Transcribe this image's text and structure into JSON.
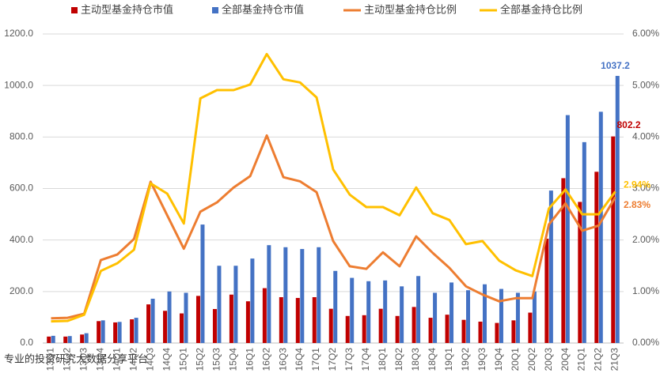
{
  "chart_data": {
    "type": "combo",
    "categories": [
      "13Q1",
      "13Q2",
      "13Q3",
      "13Q4",
      "14Q1",
      "14Q2",
      "14Q3",
      "14Q4",
      "15Q1",
      "15Q2",
      "15Q3",
      "15Q4",
      "16Q1",
      "16Q2",
      "16Q3",
      "16Q4",
      "17Q1",
      "17Q2",
      "17Q3",
      "17Q4",
      "18Q1",
      "18Q2",
      "18Q3",
      "18Q4",
      "19Q1",
      "19Q2",
      "19Q3",
      "19Q4",
      "20Q1",
      "20Q2",
      "20Q3",
      "20Q4",
      "21Q1",
      "21Q2",
      "21Q3"
    ],
    "series": [
      {
        "name": "主动型基金持仓市值",
        "type": "bar",
        "color": "#c00000",
        "values": [
          25,
          25,
          33,
          85,
          80,
          92,
          150,
          125,
          115,
          183,
          132,
          188,
          162,
          213,
          178,
          175,
          178,
          133,
          105,
          108,
          133,
          105,
          140,
          98,
          110,
          90,
          83,
          78,
          88,
          118,
          405,
          640,
          548,
          665,
          802.2
        ],
        "value_labels": [
          null,
          null,
          null,
          null,
          null,
          null,
          null,
          null,
          null,
          null,
          null,
          null,
          null,
          null,
          null,
          null,
          null,
          null,
          null,
          null,
          null,
          null,
          null,
          null,
          null,
          null,
          null,
          null,
          null,
          null,
          null,
          null,
          null,
          null,
          "802.2"
        ]
      },
      {
        "name": "全部基金持仓市值",
        "type": "bar",
        "color": "#4472c4",
        "values": [
          28,
          27,
          38,
          88,
          82,
          98,
          172,
          200,
          195,
          460,
          300,
          300,
          328,
          380,
          372,
          365,
          372,
          280,
          253,
          240,
          243,
          220,
          260,
          195,
          235,
          205,
          228,
          210,
          195,
          200,
          592,
          885,
          780,
          898,
          1037.2
        ],
        "value_labels": [
          null,
          null,
          null,
          null,
          null,
          null,
          null,
          null,
          null,
          null,
          null,
          null,
          null,
          null,
          null,
          null,
          null,
          null,
          null,
          null,
          null,
          null,
          null,
          null,
          null,
          null,
          null,
          null,
          null,
          null,
          null,
          null,
          null,
          null,
          "1037.2"
        ]
      },
      {
        "name": "主动型基金持仓比例",
        "type": "line",
        "axis": "y2",
        "color": "#ed7d31",
        "values": [
          0.48,
          0.49,
          0.57,
          1.61,
          1.72,
          2.02,
          3.13,
          2.48,
          1.83,
          2.55,
          2.73,
          3.02,
          3.24,
          4.03,
          3.22,
          3.14,
          2.93,
          1.98,
          1.49,
          1.44,
          1.76,
          1.49,
          2.07,
          1.75,
          1.46,
          1.1,
          0.94,
          0.81,
          0.87,
          0.87,
          2.3,
          2.71,
          2.18,
          2.28,
          2.83
        ],
        "value_labels": [
          null,
          null,
          null,
          null,
          null,
          null,
          null,
          null,
          null,
          null,
          null,
          null,
          null,
          null,
          null,
          null,
          null,
          null,
          null,
          null,
          null,
          null,
          null,
          null,
          null,
          null,
          null,
          null,
          null,
          null,
          null,
          null,
          null,
          null,
          "2.83%"
        ]
      },
      {
        "name": "全部基金持仓比例",
        "type": "line",
        "axis": "y2",
        "color": "#ffc000",
        "values": [
          0.42,
          0.43,
          0.55,
          1.4,
          1.55,
          1.81,
          3.1,
          2.9,
          2.32,
          4.75,
          4.91,
          4.91,
          5.02,
          5.61,
          5.12,
          5.06,
          4.77,
          3.37,
          2.88,
          2.64,
          2.64,
          2.48,
          3.02,
          2.52,
          2.39,
          1.92,
          1.98,
          1.6,
          1.41,
          1.3,
          2.61,
          2.98,
          2.5,
          2.5,
          2.94
        ],
        "value_labels": [
          null,
          null,
          null,
          null,
          null,
          null,
          null,
          null,
          null,
          null,
          null,
          null,
          null,
          null,
          null,
          null,
          null,
          null,
          null,
          null,
          null,
          null,
          null,
          null,
          null,
          null,
          null,
          null,
          null,
          null,
          null,
          null,
          null,
          null,
          "2.94%"
        ]
      }
    ],
    "ylim": [
      0,
      1200
    ],
    "yticks": [
      {
        "value": 0,
        "label": "0.0"
      },
      {
        "value": 200,
        "label": "200.0"
      },
      {
        "value": 400,
        "label": "400.0"
      },
      {
        "value": 600,
        "label": "600.0"
      },
      {
        "value": 800,
        "label": "800.0"
      },
      {
        "value": 1000,
        "label": "1000.0"
      },
      {
        "value": 1200,
        "label": "1200.0"
      }
    ],
    "y2lim": [
      0,
      6
    ],
    "y2ticks": [
      {
        "value": 0,
        "label": "0.00%"
      },
      {
        "value": 1,
        "label": "1.00%"
      },
      {
        "value": 2,
        "label": "2.00%"
      },
      {
        "value": 3,
        "label": "3.00%"
      },
      {
        "value": 4,
        "label": "4.00%"
      },
      {
        "value": 5,
        "label": "5.00%"
      },
      {
        "value": 6,
        "label": "6.00%"
      }
    ],
    "grid": true,
    "legend": "top",
    "watermark": "专业的投资研究大数据分享平台"
  }
}
